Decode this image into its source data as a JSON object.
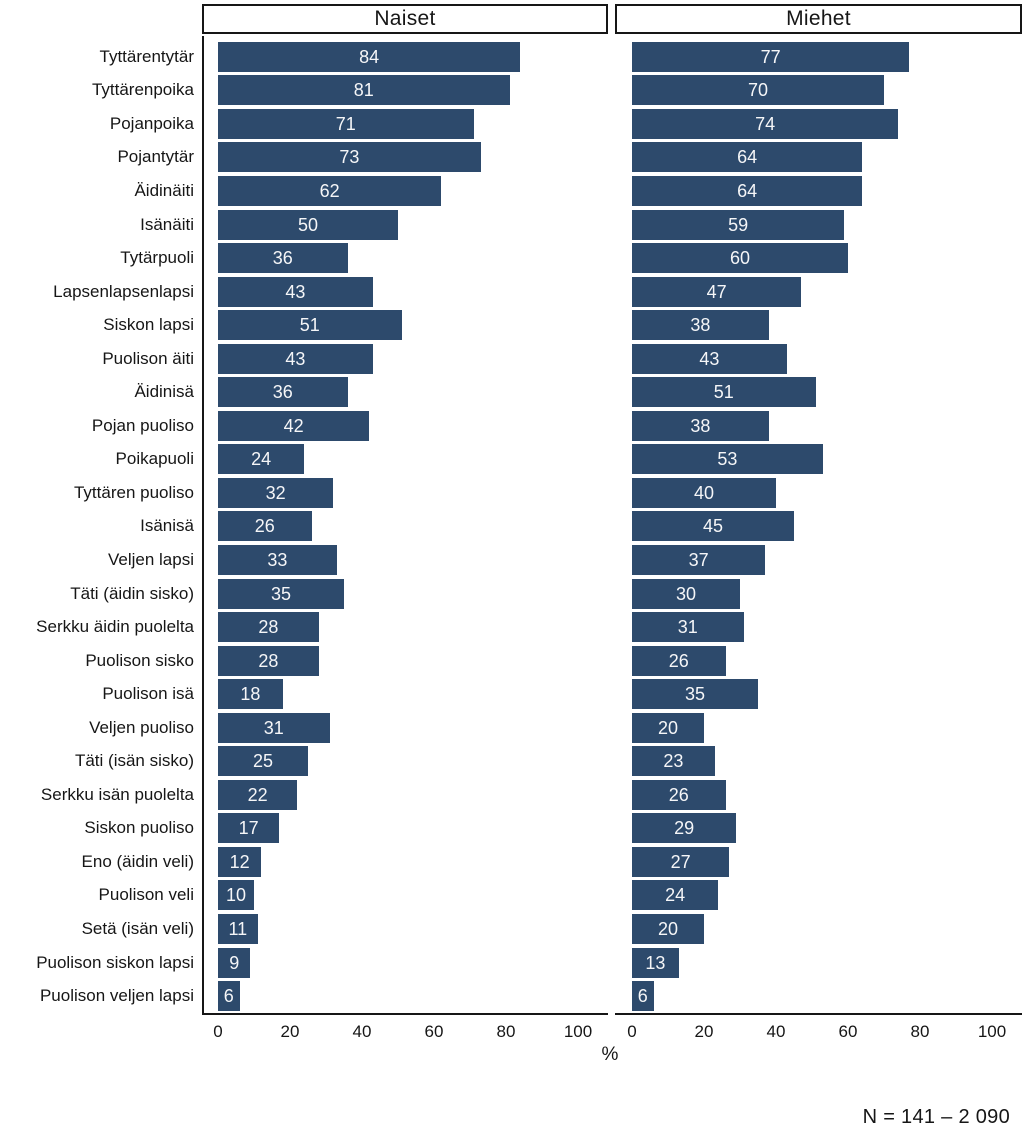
{
  "chart_data": {
    "type": "bar",
    "orientation": "horizontal",
    "facets": [
      "Naiset",
      "Miehet"
    ],
    "categories": [
      "Tyttärentytär",
      "Tyttärenpoika",
      "Pojanpoika",
      "Pojantytär",
      "Äidinäiti",
      "Isänäiti",
      "Tytärpuoli",
      "Lapsenlapsenlapsi",
      "Siskon lapsi",
      "Puolison äiti",
      "Äidinisä",
      "Pojan puoliso",
      "Poikapuoli",
      "Tyttären puoliso",
      "Isänisä",
      "Veljen lapsi",
      "Täti (äidin sisko)",
      "Serkku äidin puolelta",
      "Puolison sisko",
      "Puolison isä",
      "Veljen puoliso",
      "Täti (isän sisko)",
      "Serkku isän puolelta",
      "Siskon puoliso",
      "Eno (äidin veli)",
      "Puolison veli",
      "Setä (isän veli)",
      "Puolison siskon lapsi",
      "Puolison veljen lapsi"
    ],
    "series": [
      {
        "name": "Naiset",
        "values": [
          84,
          81,
          71,
          73,
          62,
          50,
          36,
          43,
          51,
          43,
          36,
          42,
          24,
          32,
          26,
          33,
          35,
          28,
          28,
          18,
          31,
          25,
          22,
          17,
          12,
          10,
          11,
          9,
          6
        ]
      },
      {
        "name": "Miehet",
        "values": [
          77,
          70,
          74,
          64,
          64,
          59,
          60,
          47,
          38,
          43,
          51,
          38,
          53,
          40,
          45,
          37,
          30,
          31,
          26,
          35,
          20,
          23,
          26,
          29,
          27,
          24,
          20,
          13,
          6
        ]
      }
    ],
    "xlabel": "%",
    "x_ticks": [
      0,
      20,
      40,
      60,
      80,
      100
    ],
    "xlim": [
      0,
      100
    ],
    "note": "N = 141 – 2 090",
    "bar_color": "#2d4a6c",
    "value_label_color": "#f5f6f8",
    "axis_color": "#161616",
    "text_color": "#161616",
    "legend": "none",
    "grid": false
  }
}
